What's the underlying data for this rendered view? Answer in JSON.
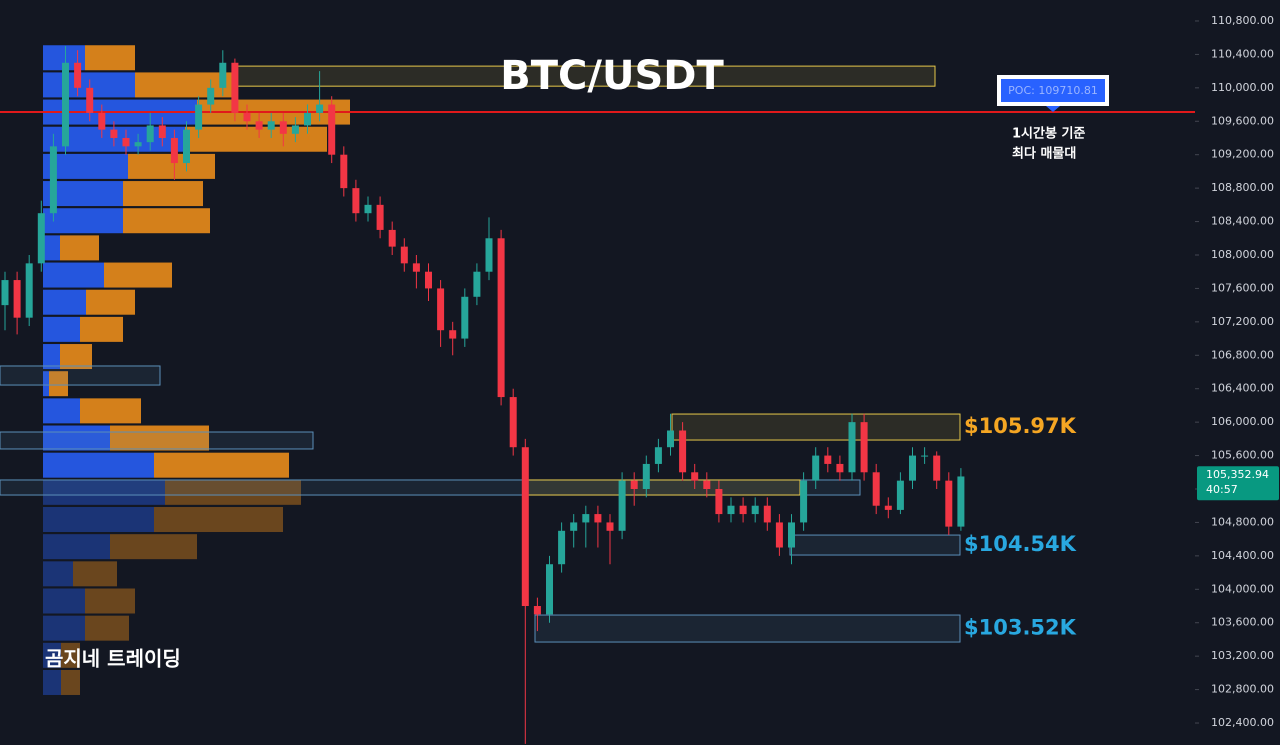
{
  "chart_data": {
    "type": "candlestick",
    "title": "BTC/USDT",
    "watermark": "곰지네 트레이딩",
    "up_color": "#26a69a",
    "down_color": "#f23645",
    "ylim": [
      102137,
      111051
    ],
    "yticks": [
      {
        "value": 110800,
        "label": "110,800.00"
      },
      {
        "value": 110400,
        "label": "110,400.00"
      },
      {
        "value": 110000,
        "label": "110,000.00"
      },
      {
        "value": 109600,
        "label": "109,600.00"
      },
      {
        "value": 109200,
        "label": "109,200.00"
      },
      {
        "value": 108800,
        "label": "108,800.00"
      },
      {
        "value": 108400,
        "label": "108,400.00"
      },
      {
        "value": 108000,
        "label": "108,000.00"
      },
      {
        "value": 107600,
        "label": "107,600.00"
      },
      {
        "value": 107200,
        "label": "107,200.00"
      },
      {
        "value": 106800,
        "label": "106,800.00"
      },
      {
        "value": 106400,
        "label": "106,400.00"
      },
      {
        "value": 106000,
        "label": "106,000.00"
      },
      {
        "value": 105600,
        "label": "105,600.00"
      },
      {
        "value": 105200,
        "label": "105,200.00"
      },
      {
        "value": 104800,
        "label": "104,800.00"
      },
      {
        "value": 104400,
        "label": "104,400.00"
      },
      {
        "value": 104000,
        "label": "104,000.00"
      },
      {
        "value": 103600,
        "label": "103,600.00"
      },
      {
        "value": 103200,
        "label": "103,200.00"
      },
      {
        "value": 102800,
        "label": "102,800.00"
      },
      {
        "value": 102400,
        "label": "102,400.00"
      }
    ],
    "candles": [
      [
        107400,
        107800,
        107100,
        107700
      ],
      [
        107700,
        107800,
        107050,
        107250
      ],
      [
        107250,
        108000,
        107150,
        107900
      ],
      [
        107900,
        108650,
        107800,
        108500
      ],
      [
        108500,
        109450,
        108400,
        109300
      ],
      [
        109300,
        110500,
        109200,
        110300
      ],
      [
        110300,
        110450,
        109900,
        110000
      ],
      [
        110000,
        110100,
        109600,
        109700
      ],
      [
        109700,
        109800,
        109400,
        109500
      ],
      [
        109500,
        109600,
        109300,
        109400
      ],
      [
        109400,
        109500,
        109200,
        109300
      ],
      [
        109300,
        109450,
        109200,
        109350
      ],
      [
        109350,
        109700,
        109250,
        109550
      ],
      [
        109550,
        109650,
        109300,
        109400
      ],
      [
        109400,
        109500,
        108900,
        109100
      ],
      [
        109100,
        109600,
        109000,
        109500
      ],
      [
        109500,
        109900,
        109400,
        109800
      ],
      [
        109800,
        110100,
        109700,
        110000
      ],
      [
        110000,
        110450,
        109900,
        110300
      ],
      [
        110300,
        110350,
        109600,
        109700
      ],
      [
        109700,
        109800,
        109500,
        109600
      ],
      [
        109600,
        109700,
        109400,
        109500
      ],
      [
        109500,
        109700,
        109400,
        109600
      ],
      [
        109600,
        109700,
        109300,
        109450
      ],
      [
        109450,
        109650,
        109350,
        109550
      ],
      [
        109550,
        109800,
        109450,
        109700
      ],
      [
        109700,
        110200,
        109600,
        109800
      ],
      [
        109800,
        109900,
        109100,
        109200
      ],
      [
        109200,
        109300,
        108700,
        108800
      ],
      [
        108800,
        108900,
        108400,
        108500
      ],
      [
        108500,
        108700,
        108400,
        108600
      ],
      [
        108600,
        108700,
        108200,
        108300
      ],
      [
        108300,
        108400,
        108000,
        108100
      ],
      [
        108100,
        108200,
        107800,
        107900
      ],
      [
        107900,
        108000,
        107600,
        107800
      ],
      [
        107800,
        107900,
        107450,
        107600
      ],
      [
        107600,
        107700,
        106900,
        107100
      ],
      [
        107100,
        107200,
        106800,
        107000
      ],
      [
        107000,
        107600,
        106900,
        107500
      ],
      [
        107500,
        107900,
        107400,
        107800
      ],
      [
        107800,
        108450,
        107700,
        108200
      ],
      [
        108200,
        108300,
        106200,
        106300
      ],
      [
        106300,
        106400,
        105600,
        105700
      ],
      [
        105700,
        105800,
        102150,
        103800
      ],
      [
        103800,
        103900,
        103500,
        103700
      ],
      [
        103700,
        104400,
        103600,
        104300
      ],
      [
        104300,
        104800,
        104200,
        104700
      ],
      [
        104700,
        104900,
        104500,
        104800
      ],
      [
        104800,
        105000,
        104500,
        104900
      ],
      [
        104900,
        105000,
        104500,
        104800
      ],
      [
        104800,
        104900,
        104300,
        104700
      ],
      [
        104700,
        105400,
        104600,
        105300
      ],
      [
        105300,
        105400,
        105000,
        105200
      ],
      [
        105200,
        105600,
        105100,
        105500
      ],
      [
        105500,
        105800,
        105400,
        105700
      ],
      [
        105700,
        106100,
        105600,
        105900
      ],
      [
        105900,
        106000,
        105300,
        105400
      ],
      [
        105400,
        105500,
        105200,
        105300
      ],
      [
        105300,
        105400,
        105100,
        105200
      ],
      [
        105200,
        105300,
        104800,
        104900
      ],
      [
        104900,
        105100,
        104800,
        105000
      ],
      [
        105000,
        105100,
        104800,
        104900
      ],
      [
        104900,
        105100,
        104800,
        105000
      ],
      [
        105000,
        105100,
        104700,
        104800
      ],
      [
        104800,
        104900,
        104400,
        104500
      ],
      [
        104500,
        104900,
        104300,
        104800
      ],
      [
        104800,
        105400,
        104700,
        105300
      ],
      [
        105300,
        105700,
        105200,
        105600
      ],
      [
        105600,
        105700,
        105400,
        105500
      ],
      [
        105500,
        105600,
        105300,
        105400
      ],
      [
        105400,
        106100,
        105300,
        106000
      ],
      [
        106000,
        106100,
        105300,
        105400
      ],
      [
        105400,
        105500,
        104900,
        105000
      ],
      [
        105000,
        105100,
        104850,
        104950
      ],
      [
        104950,
        105400,
        104900,
        105300
      ],
      [
        105300,
        105700,
        105200,
        105600
      ],
      [
        105600,
        105700,
        105500,
        105600
      ],
      [
        105600,
        105650,
        105200,
        105300
      ],
      [
        105300,
        105400,
        104650,
        104750
      ],
      [
        104750,
        105450,
        104700,
        105350
      ]
    ],
    "volume_profile": {
      "buy_color": "#2962ff",
      "sell_color": "#f7931a",
      "prices": [
        110360,
        110035,
        109710,
        109385,
        109060,
        108735,
        108410,
        108085,
        107760,
        107435,
        107110,
        106785,
        106460,
        106135,
        105810,
        105485,
        105160,
        104835,
        104510,
        104185,
        103860,
        103535,
        103210,
        102885
      ],
      "buy": [
        42,
        92,
        154,
        142,
        85,
        80,
        80,
        17,
        61,
        43,
        37,
        17,
        6,
        37,
        67,
        111,
        122,
        111,
        67,
        30,
        42,
        42,
        18,
        18
      ],
      "sell": [
        50,
        97,
        153,
        142,
        87,
        80,
        87,
        39,
        68,
        49,
        43,
        32,
        19,
        61,
        99,
        135,
        136,
        129,
        87,
        44,
        50,
        44,
        19,
        19
      ]
    },
    "poc": {
      "value": 109710.81,
      "label": "POC: 109710.81",
      "color": "#e0191b"
    },
    "poc_note": [
      "1시간봉 기준",
      "최다 매물대"
    ],
    "zones": [
      {
        "top": 110260,
        "bottom": 110020,
        "color": "#e6c84a"
      },
      {
        "top": 106097,
        "bottom": 105786,
        "color": "#e6c84a",
        "label": "$105.97K"
      },
      {
        "top": 104649,
        "bottom": 104410,
        "color": "#5b8fb9",
        "label": "$104.54K"
      },
      {
        "top": 103692,
        "bottom": 103369,
        "color": "#5b8fb9",
        "label": "$103.52K"
      },
      {
        "top": 105308,
        "bottom": 105128,
        "color": "#5b8fb9"
      },
      {
        "top": 105308,
        "bottom": 105128,
        "color": "#e6c84a"
      },
      {
        "top": 105882,
        "bottom": 105679,
        "color": "#5b8fb9"
      },
      {
        "top": 106672,
        "bottom": 106444,
        "color": "#5b8fb9"
      }
    ],
    "last_price": {
      "value": 105352.94,
      "label": "105,352.94",
      "color": "#089981"
    },
    "countdown": "40:57"
  }
}
